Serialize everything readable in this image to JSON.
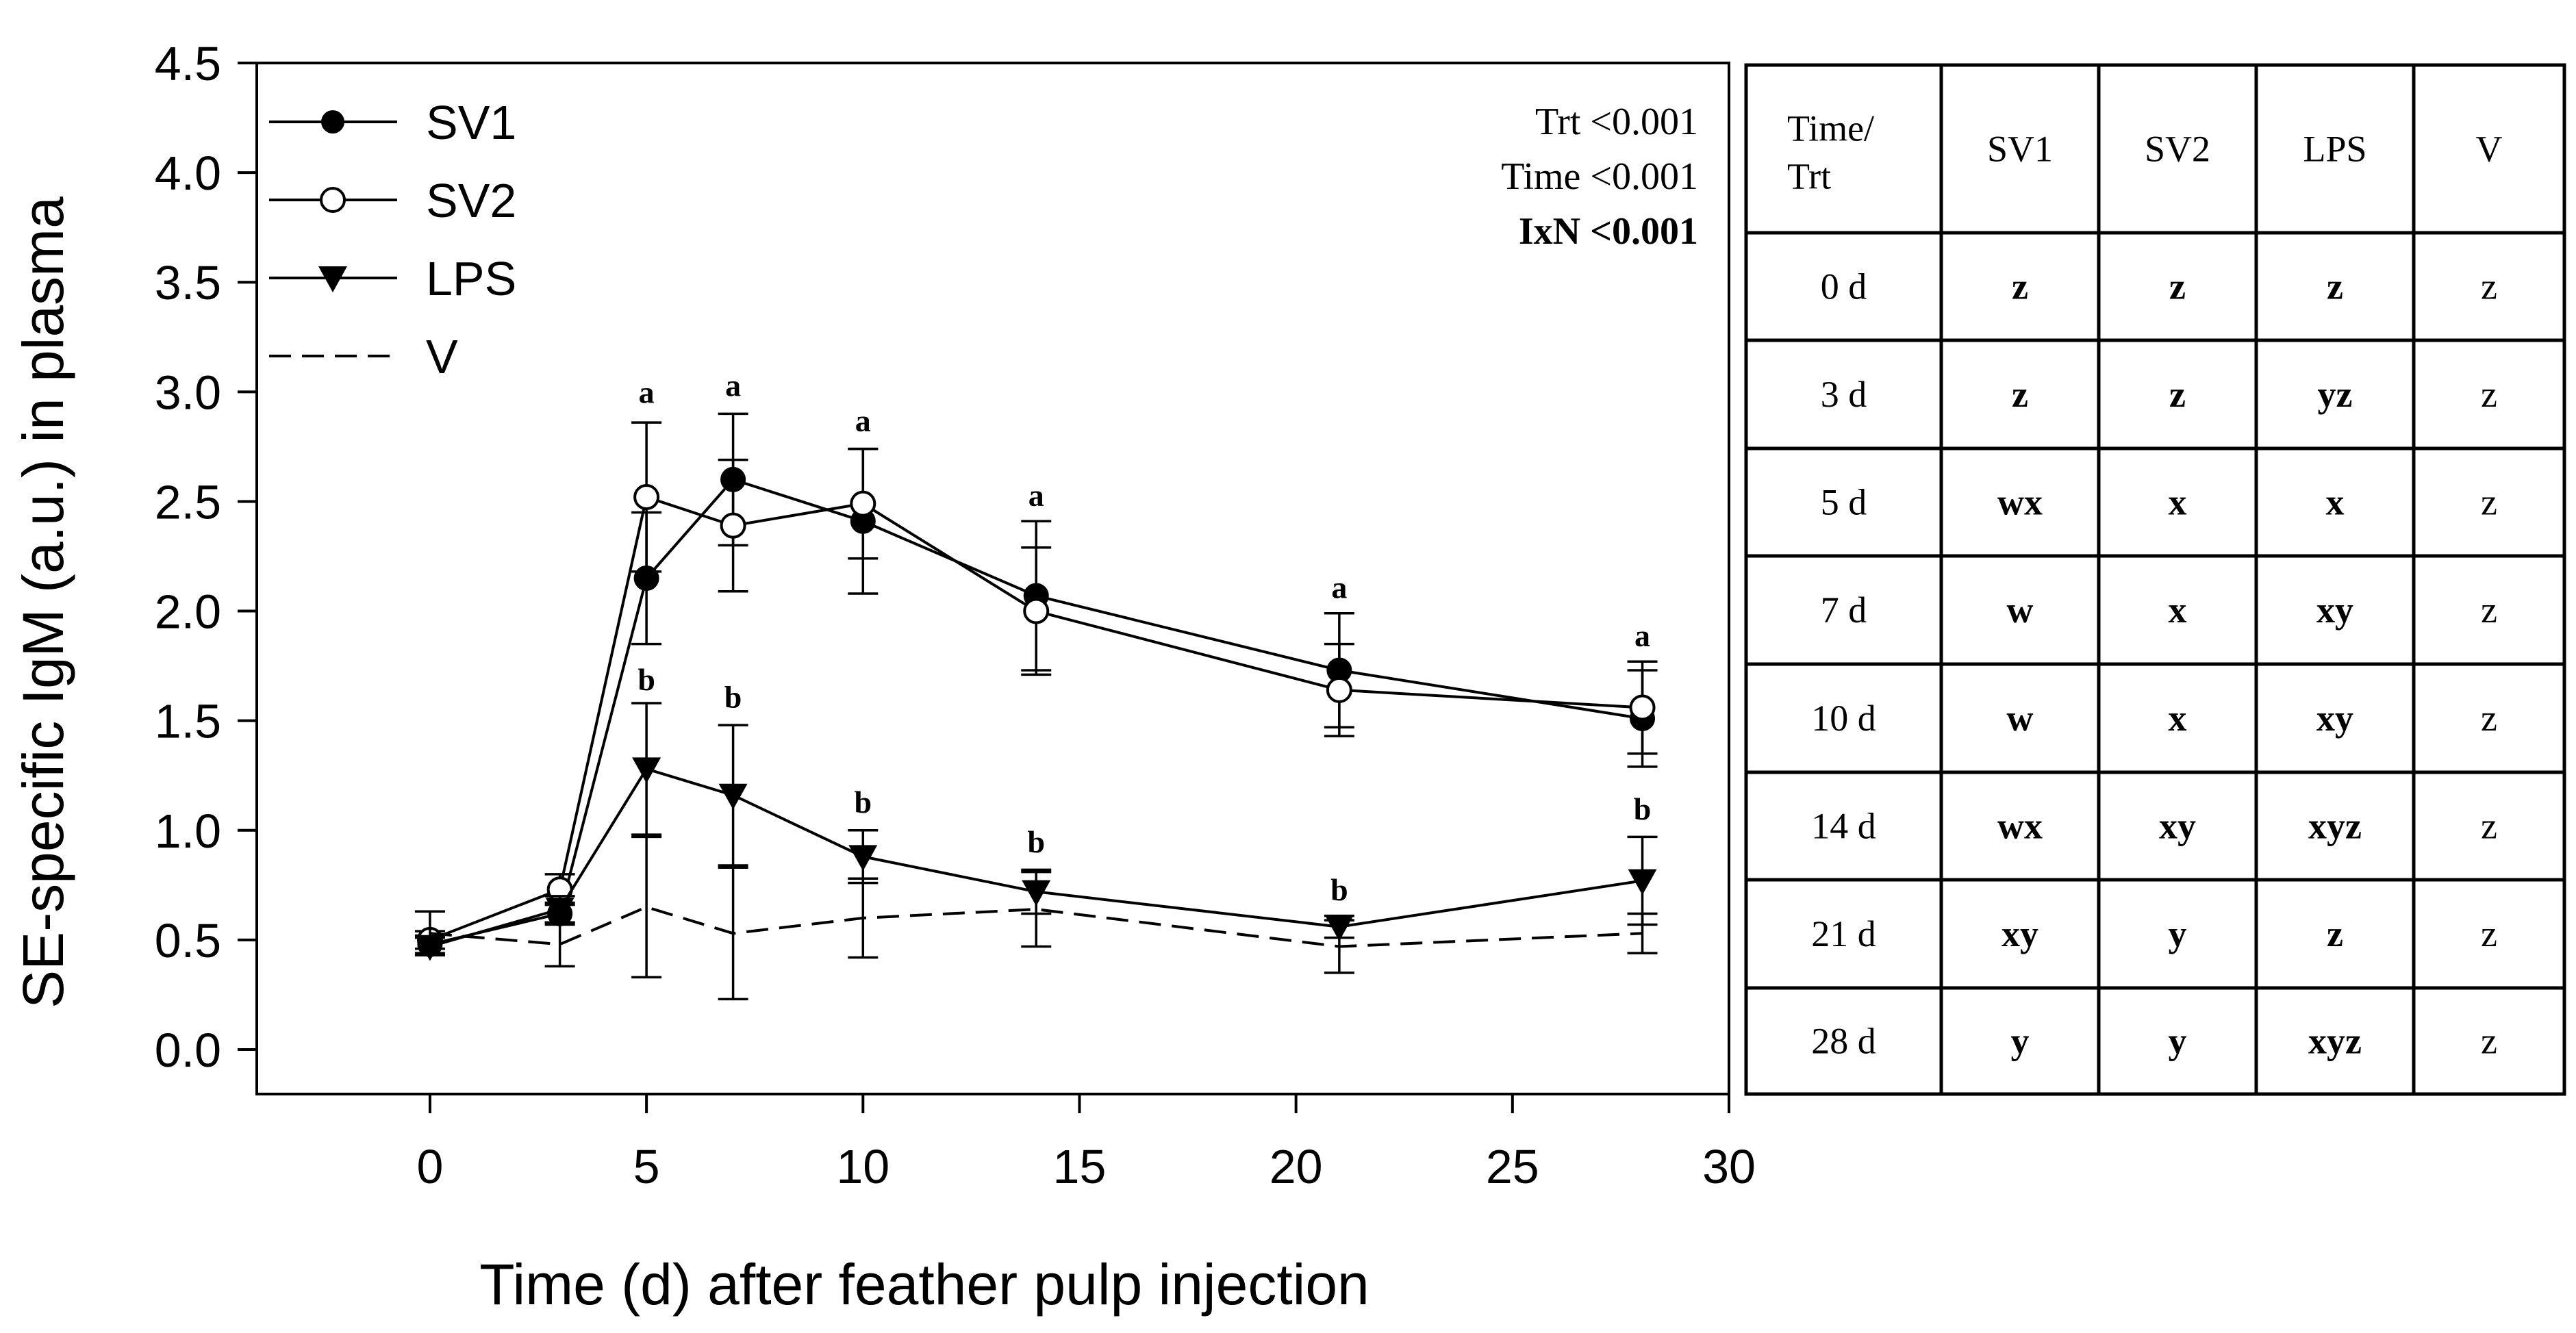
{
  "chart_data": {
    "type": "line",
    "xlabel": "Time (d) after feather pulp injection",
    "ylabel": "SE-specific IgM (a.u.) in plasma",
    "xlim": [
      -4,
      30
    ],
    "ylim": [
      -0.2,
      4.5
    ],
    "xticks": [
      "0",
      "5",
      "10",
      "15",
      "20",
      "25",
      "30"
    ],
    "xtick_values": [
      0,
      5,
      10,
      15,
      20,
      25,
      30
    ],
    "yticks": [
      "0.0",
      "0.5",
      "1.0",
      "1.5",
      "2.0",
      "2.5",
      "3.0",
      "3.5",
      "4.0",
      "4.5"
    ],
    "ytick_values": [
      0,
      0.5,
      1.0,
      1.5,
      2.0,
      2.5,
      3.0,
      3.5,
      4.0,
      4.5
    ],
    "x": [
      0,
      3,
      5,
      7,
      10,
      14,
      21,
      28
    ],
    "series": [
      {
        "name": "SV1",
        "marker": "filled-circle",
        "line": "solid",
        "values": [
          0.48,
          0.62,
          2.15,
          2.6,
          2.41,
          2.07,
          1.73,
          1.51
        ],
        "errors": [
          0.04,
          0.05,
          0.3,
          0.3,
          0.33,
          0.34,
          0.26,
          0.22
        ]
      },
      {
        "name": "SV2",
        "marker": "open-circle",
        "line": "solid",
        "values": [
          0.5,
          0.73,
          2.52,
          2.39,
          2.49,
          2.0,
          1.64,
          1.56
        ],
        "errors": [
          0.04,
          0.07,
          0.34,
          0.3,
          0.25,
          0.29,
          0.21,
          0.21
        ]
      },
      {
        "name": "LPS",
        "marker": "filled-triangle-down",
        "line": "solid",
        "values": [
          0.47,
          0.64,
          1.28,
          1.16,
          0.88,
          0.72,
          0.56,
          0.77
        ],
        "errors": [
          0.04,
          0.06,
          0.3,
          0.32,
          0.12,
          0.1,
          0.05,
          0.2
        ]
      },
      {
        "name": "V",
        "marker": "none",
        "line": "dashed",
        "values": [
          0.53,
          0.48,
          0.65,
          0.53,
          0.6,
          0.64,
          0.47,
          0.53
        ],
        "errors": [
          0.1,
          0.1,
          0.32,
          0.3,
          0.18,
          0.17,
          0.12,
          0.09
        ]
      }
    ],
    "significance": [
      {
        "x": 5,
        "y": 2.95,
        "label": "a"
      },
      {
        "x": 7,
        "y": 2.98,
        "label": "a"
      },
      {
        "x": 10,
        "y": 2.82,
        "label": "a"
      },
      {
        "x": 14,
        "y": 2.48,
        "label": "a"
      },
      {
        "x": 21,
        "y": 2.06,
        "label": "a"
      },
      {
        "x": 28,
        "y": 1.84,
        "label": "a"
      },
      {
        "x": 5,
        "y": 1.64,
        "label": "b"
      },
      {
        "x": 7,
        "y": 1.56,
        "label": "b"
      },
      {
        "x": 10,
        "y": 1.08,
        "label": "b"
      },
      {
        "x": 14,
        "y": 0.9,
        "label": "b"
      },
      {
        "x": 21,
        "y": 0.68,
        "label": "b"
      },
      {
        "x": 28,
        "y": 1.05,
        "label": "b"
      }
    ],
    "stats": [
      {
        "text": "Trt <0.001",
        "bold": false
      },
      {
        "text": "Time <0.001",
        "bold": false
      },
      {
        "text": "IxN <0.001",
        "bold": true
      }
    ],
    "legend": [
      "SV1",
      "SV2",
      "LPS",
      "V"
    ],
    "legend_position": "top-left"
  },
  "table": {
    "header_line1": "Time/",
    "header_line2": "Trt",
    "columns": [
      "SV1",
      "SV2",
      "LPS",
      "V"
    ],
    "rows": [
      {
        "time": "0 d",
        "cells": [
          "z",
          "z",
          "z",
          "z"
        ]
      },
      {
        "time": "3 d",
        "cells": [
          "z",
          "z",
          "yz",
          "z"
        ]
      },
      {
        "time": "5 d",
        "cells": [
          "wx",
          "x",
          "x",
          "z"
        ]
      },
      {
        "time": "7 d",
        "cells": [
          "w",
          "x",
          "xy",
          "z"
        ]
      },
      {
        "time": "10 d",
        "cells": [
          "w",
          "x",
          "xy",
          "z"
        ]
      },
      {
        "time": "14 d",
        "cells": [
          "wx",
          "xy",
          "xyz",
          "z"
        ]
      },
      {
        "time": "21 d",
        "cells": [
          "xy",
          "y",
          "z",
          "z"
        ]
      },
      {
        "time": "28 d",
        "cells": [
          "y",
          "y",
          "xyz",
          "z"
        ]
      }
    ],
    "bold_columns": [
      true,
      true,
      true,
      false
    ]
  }
}
